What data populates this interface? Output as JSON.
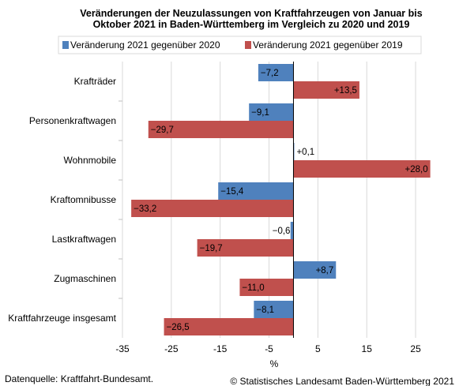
{
  "chart_data": {
    "type": "bar",
    "orientation": "horizontal",
    "title": [
      "Veränderungen der Neuzulassungen von Kraftfahrzeugen von Januar bis",
      "Oktober 2021 in Baden-Württemberg im Vergleich zu 2020 und 2019"
    ],
    "categories": [
      "Krafträder",
      "Personenkraftwagen",
      "Wohnmobile",
      "Kraftomnibusse",
      "Lastkraftwagen",
      "Zugmaschinen",
      "Kraftfahrzeuge insgesamt"
    ],
    "series": [
      {
        "name": "Veränderung 2021 gegenüber 2020",
        "color": "#4f81bd",
        "values": [
          -7.2,
          -9.1,
          0.1,
          -15.4,
          -0.6,
          8.7,
          -8.1
        ],
        "labels": [
          "−7,2",
          "−9,1",
          "+0,1",
          "−15,4",
          "−0,6",
          "+8,7",
          "−8,1"
        ]
      },
      {
        "name": "Veränderung 2021 gegenüber 2019",
        "color": "#c0504d",
        "values": [
          13.5,
          -29.7,
          28.0,
          -33.2,
          -19.7,
          -11.0,
          -26.5
        ],
        "labels": [
          "+13,5",
          "−29,7",
          "+28,0",
          "−33,2",
          "−19,7",
          "−11,0",
          "−26,5"
        ]
      }
    ],
    "xlim": [
      -35,
      30
    ],
    "xticks": [
      -35,
      -25,
      -15,
      -5,
      5,
      15,
      25
    ],
    "xtick_labels": [
      "-35",
      "-25",
      "-15",
      "-5",
      "5",
      "15",
      "25"
    ],
    "xlabel": "%",
    "ylabel": "",
    "grid": "vertical gridlines",
    "legend": "top"
  },
  "footer": {
    "source": "Datenquelle: Kraftfahrt-Bundesamt.",
    "copyright": "© Statistisches Landesamt Baden-Württemberg 2021"
  }
}
